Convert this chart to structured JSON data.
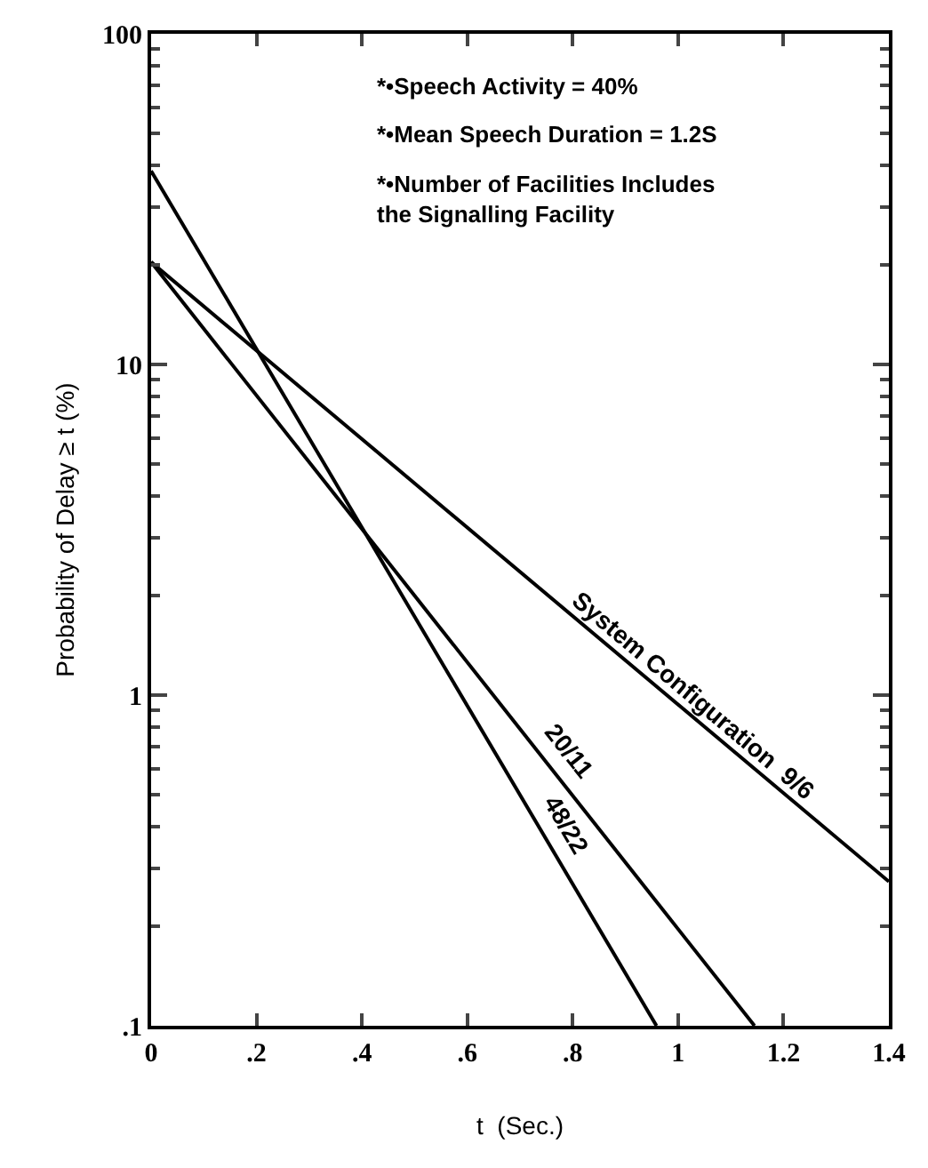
{
  "chart_data": {
    "type": "line",
    "xlabel": "t  (Sec.)",
    "ylabel": "Probability of Delay ≥ t (%)",
    "log": "y",
    "legend": false,
    "marker": "none",
    "line_style": "solid",
    "xlim": [
      0,
      1.4
    ],
    "ylim": [
      0.1,
      100
    ],
    "xticks": [
      0,
      {
        "value": 0.2,
        "label": ".2"
      },
      {
        "value": 0.4,
        "label": ".4"
      },
      {
        "value": 0.6,
        "label": ".6"
      },
      {
        "value": 0.8,
        "label": ".8"
      },
      1,
      1.2,
      1.4
    ],
    "yticks": [
      {
        "value": 0.1,
        "label": ".1"
      },
      1,
      10,
      100
    ],
    "series": [
      {
        "name": "System Configuration  9/6",
        "color": "#000000",
        "x": [
          0,
          1.4
        ],
        "values": [
          20.4,
          0.273
        ]
      },
      {
        "name": "20/11",
        "color": "#000000",
        "x": [
          0,
          1.145
        ],
        "values": [
          20.4,
          0.1
        ]
      },
      {
        "name": "48/22",
        "color": "#000000",
        "x": [
          0,
          0.959
        ],
        "values": [
          38.5,
          0.1
        ]
      }
    ],
    "annotations": [
      "*•Speech Activity = 40%",
      "*•Mean Speech Duration = 1.2S",
      "*•Number of Facilities Includes\nthe Signalling Facility"
    ]
  }
}
